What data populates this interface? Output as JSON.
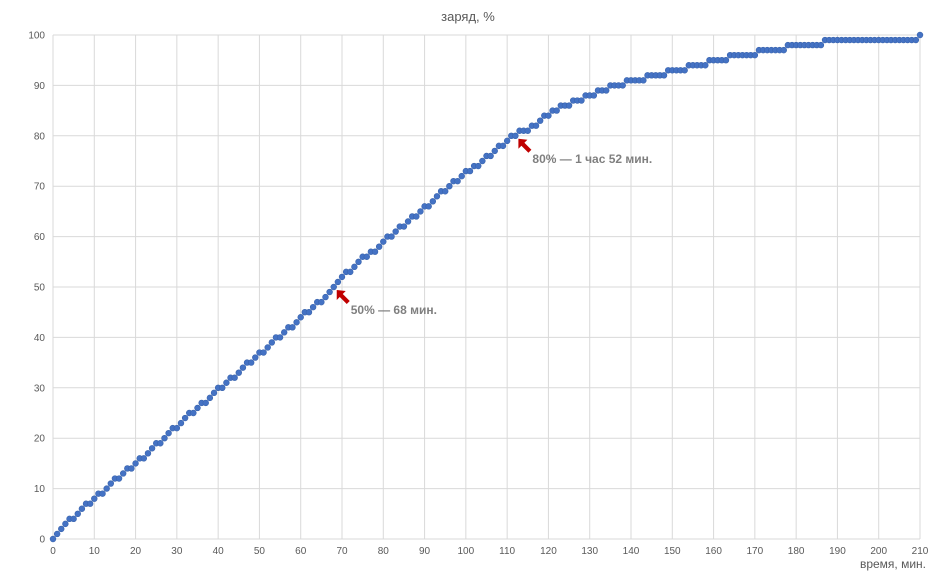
{
  "chart_data": {
    "type": "scatter",
    "title": "заряд, %",
    "xlabel": "время, мин.",
    "ylabel": "",
    "xlim": [
      0,
      210
    ],
    "ylim": [
      0,
      100
    ],
    "x_ticks": [
      0,
      10,
      20,
      30,
      40,
      50,
      60,
      70,
      80,
      90,
      100,
      110,
      120,
      130,
      140,
      150,
      160,
      170,
      180,
      190,
      200,
      210
    ],
    "y_ticks": [
      0,
      10,
      20,
      30,
      40,
      50,
      60,
      70,
      80,
      90,
      100
    ],
    "grid": true,
    "legend": "none",
    "marker_color": "#4472C4",
    "x_start": 0,
    "x_step": 1,
    "values": [
      0,
      1,
      2,
      3,
      4,
      4,
      5,
      6,
      7,
      7,
      8,
      9,
      9,
      10,
      11,
      12,
      12,
      13,
      14,
      14,
      15,
      16,
      16,
      17,
      18,
      19,
      19,
      20,
      21,
      22,
      22,
      23,
      24,
      25,
      25,
      26,
      27,
      27,
      28,
      29,
      30,
      30,
      31,
      32,
      32,
      33,
      34,
      35,
      35,
      36,
      37,
      37,
      38,
      39,
      40,
      40,
      41,
      42,
      42,
      43,
      44,
      45,
      45,
      46,
      47,
      47,
      48,
      49,
      50,
      51,
      52,
      53,
      53,
      54,
      55,
      56,
      56,
      57,
      57,
      58,
      59,
      60,
      60,
      61,
      62,
      62,
      63,
      64,
      64,
      65,
      66,
      66,
      67,
      68,
      69,
      69,
      70,
      71,
      71,
      72,
      73,
      73,
      74,
      74,
      75,
      76,
      76,
      77,
      78,
      78,
      79,
      80,
      80,
      81,
      81,
      81,
      82,
      82,
      83,
      84,
      84,
      85,
      85,
      86,
      86,
      86,
      87,
      87,
      87,
      88,
      88,
      88,
      89,
      89,
      89,
      90,
      90,
      90,
      90,
      91,
      91,
      91,
      91,
      91,
      92,
      92,
      92,
      92,
      92,
      93,
      93,
      93,
      93,
      93,
      94,
      94,
      94,
      94,
      94,
      95,
      95,
      95,
      95,
      95,
      96,
      96,
      96,
      96,
      96,
      96,
      96,
      97,
      97,
      97,
      97,
      97,
      97,
      97,
      98,
      98,
      98,
      98,
      98,
      98,
      98,
      98,
      98,
      99,
      99,
      99,
      99,
      99,
      99,
      99,
      99,
      99,
      99,
      99,
      99,
      99,
      99,
      99,
      99,
      99,
      99,
      99,
      99,
      99,
      99,
      99,
      100
    ],
    "annotations": [
      {
        "text": "50% — 68 мин.",
        "x": 68,
        "y": 50,
        "arrow_color": "#C00000"
      },
      {
        "text": "80% — 1 час 52 мин.",
        "x": 112,
        "y": 80,
        "arrow_color": "#C00000"
      }
    ]
  }
}
